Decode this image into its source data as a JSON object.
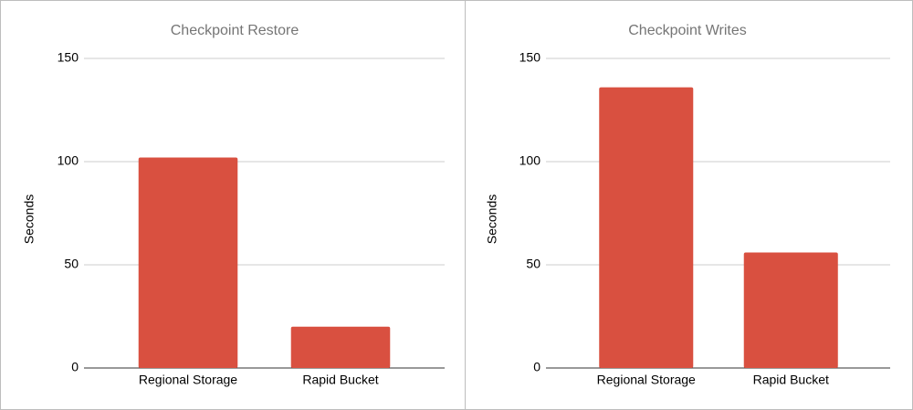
{
  "chart_data": [
    {
      "type": "bar",
      "title": "Checkpoint Restore",
      "y_label": "Seconds",
      "categories": [
        "Regional Storage",
        "Rapid Bucket"
      ],
      "values": [
        102,
        20
      ],
      "color": "#d95040",
      "ylim": [
        0,
        150
      ],
      "yticks": [
        0,
        50,
        100,
        150
      ],
      "grid": true
    },
    {
      "type": "bar",
      "title": "Checkpoint Writes",
      "y_label": "Seconds",
      "categories": [
        "Regional Storage",
        "Rapid Bucket"
      ],
      "values": [
        136,
        56
      ],
      "color": "#d95040",
      "ylim": [
        0,
        150
      ],
      "yticks": [
        0,
        50,
        100,
        150
      ],
      "grid": true
    }
  ]
}
